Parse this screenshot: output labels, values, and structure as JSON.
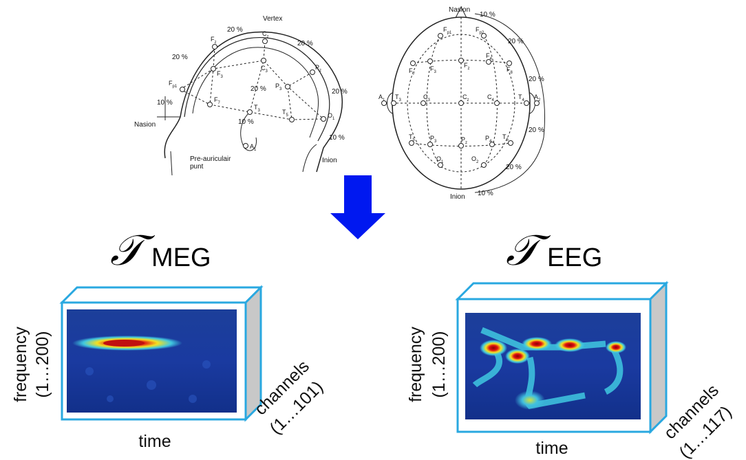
{
  "side_view": {
    "top_label": "Vertex",
    "left_label": "Nasion",
    "back_label": "Inion",
    "ear_label": [
      "Pre-auriculair",
      "punt"
    ],
    "percents": [
      "20 %",
      "20 %",
      "20 %",
      "20 %",
      "20 %",
      "10 %",
      "10 %",
      "10 %"
    ],
    "electrodes": [
      {
        "letter": "F",
        "sub": "p1"
      },
      {
        "letter": "F",
        "sub": "7"
      },
      {
        "letter": "F",
        "sub": "3"
      },
      {
        "letter": "F",
        "sub": "z"
      },
      {
        "letter": "C",
        "sub": "z"
      },
      {
        "letter": "C",
        "sub": "3"
      },
      {
        "letter": "T",
        "sub": "3"
      },
      {
        "letter": "T",
        "sub": "5"
      },
      {
        "letter": "P",
        "sub": "3"
      },
      {
        "letter": "P",
        "sub": "z"
      },
      {
        "letter": "O",
        "sub": "1"
      },
      {
        "letter": "A",
        "sub": "1"
      }
    ]
  },
  "top_view": {
    "top_label": "Nasion",
    "bottom_label": "Inion",
    "percents": [
      "10 %",
      "20 %",
      "20 %",
      "20 %",
      "20 %",
      "10 %"
    ],
    "electrodes": [
      {
        "letter": "F",
        "sub": "p1"
      },
      {
        "letter": "F",
        "sub": "p2"
      },
      {
        "letter": "F",
        "sub": "7"
      },
      {
        "letter": "F",
        "sub": "3"
      },
      {
        "letter": "F",
        "sub": "z"
      },
      {
        "letter": "F",
        "sub": "4"
      },
      {
        "letter": "F",
        "sub": "8"
      },
      {
        "letter": "A",
        "sub": "1"
      },
      {
        "letter": "T",
        "sub": "3"
      },
      {
        "letter": "C",
        "sub": "3"
      },
      {
        "letter": "C",
        "sub": "z"
      },
      {
        "letter": "C",
        "sub": "4"
      },
      {
        "letter": "T",
        "sub": "4"
      },
      {
        "letter": "A",
        "sub": "2"
      },
      {
        "letter": "T",
        "sub": "5"
      },
      {
        "letter": "P",
        "sub": "3"
      },
      {
        "letter": "P",
        "sub": "z"
      },
      {
        "letter": "P",
        "sub": "4"
      },
      {
        "letter": "T",
        "sub": "6"
      },
      {
        "letter": "O",
        "sub": "1"
      },
      {
        "letter": "O",
        "sub": "2"
      }
    ]
  },
  "tensors": [
    {
      "symbol": "𝒯",
      "subscript": "MEG",
      "y_label": "frequency",
      "y_range": "(1…200)",
      "x_label": "time",
      "depth_label": "channels",
      "depth_range": "(1…101)"
    },
    {
      "symbol": "𝒯",
      "subscript": "EEG",
      "y_label": "frequency",
      "y_range": "(1…200)",
      "x_label": "time",
      "depth_label": "channels",
      "depth_range": "(1…117)"
    }
  ]
}
